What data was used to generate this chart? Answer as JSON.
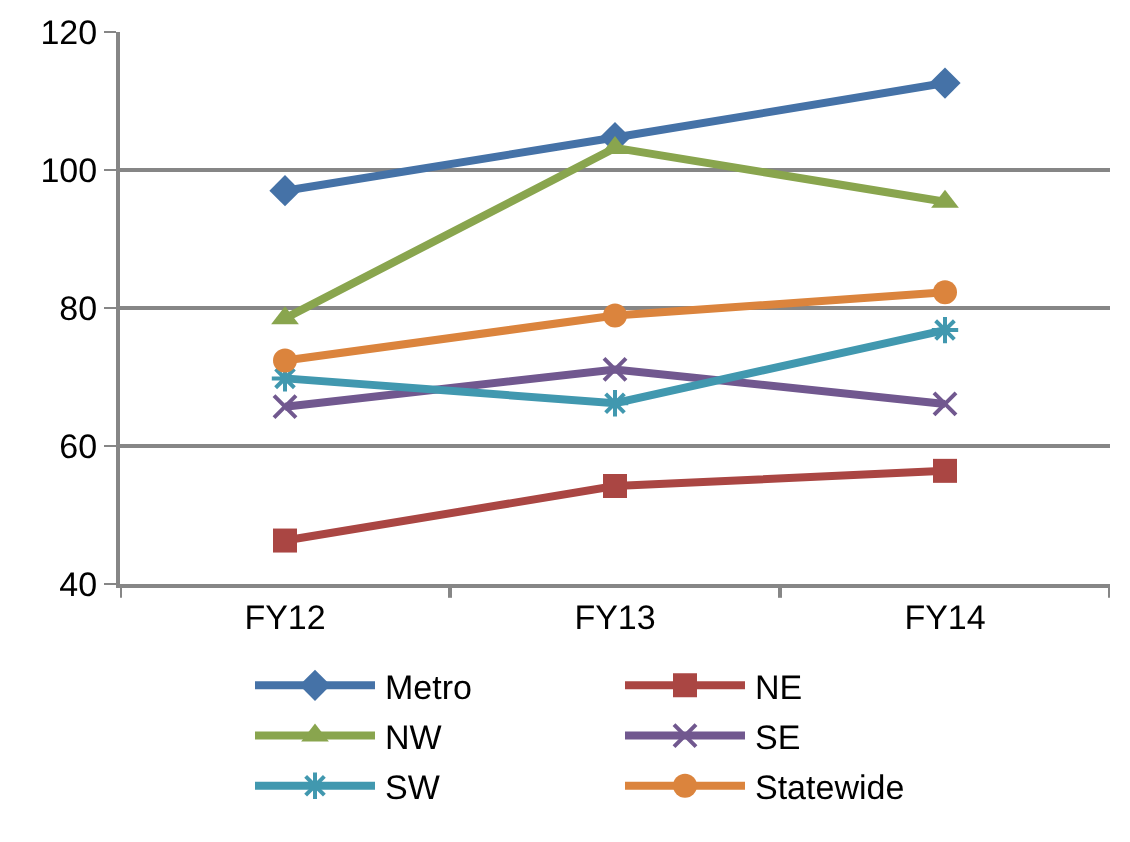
{
  "chart_data": {
    "type": "line",
    "categories": [
      "FY12",
      "FY13",
      "FY14"
    ],
    "series": [
      {
        "name": "Metro",
        "color": "#4572a7",
        "marker": "diamond",
        "values": [
          97,
          104.7,
          112.6
        ]
      },
      {
        "name": "NE",
        "color": "#aa4643",
        "marker": "square",
        "values": [
          46.3,
          54.2,
          56.4
        ]
      },
      {
        "name": "NW",
        "color": "#89a54e",
        "marker": "triangle",
        "values": [
          78.5,
          103.2,
          95.4
        ]
      },
      {
        "name": "SE",
        "color": "#71588f",
        "marker": "cross",
        "values": [
          65.7,
          71.1,
          66.1
        ]
      },
      {
        "name": "SW",
        "color": "#4198af",
        "marker": "cross",
        "values": [
          69.8,
          66.2,
          76.8
        ]
      },
      {
        "name": "Statewide",
        "color": "#db843d",
        "marker": "circle",
        "values": [
          72.4,
          78.9,
          82.3
        ]
      }
    ],
    "ylim": [
      40,
      120
    ],
    "yticks": [
      40,
      60,
      80,
      100,
      120
    ],
    "grid": "y",
    "legend": "bottom",
    "line_style": "solid"
  }
}
